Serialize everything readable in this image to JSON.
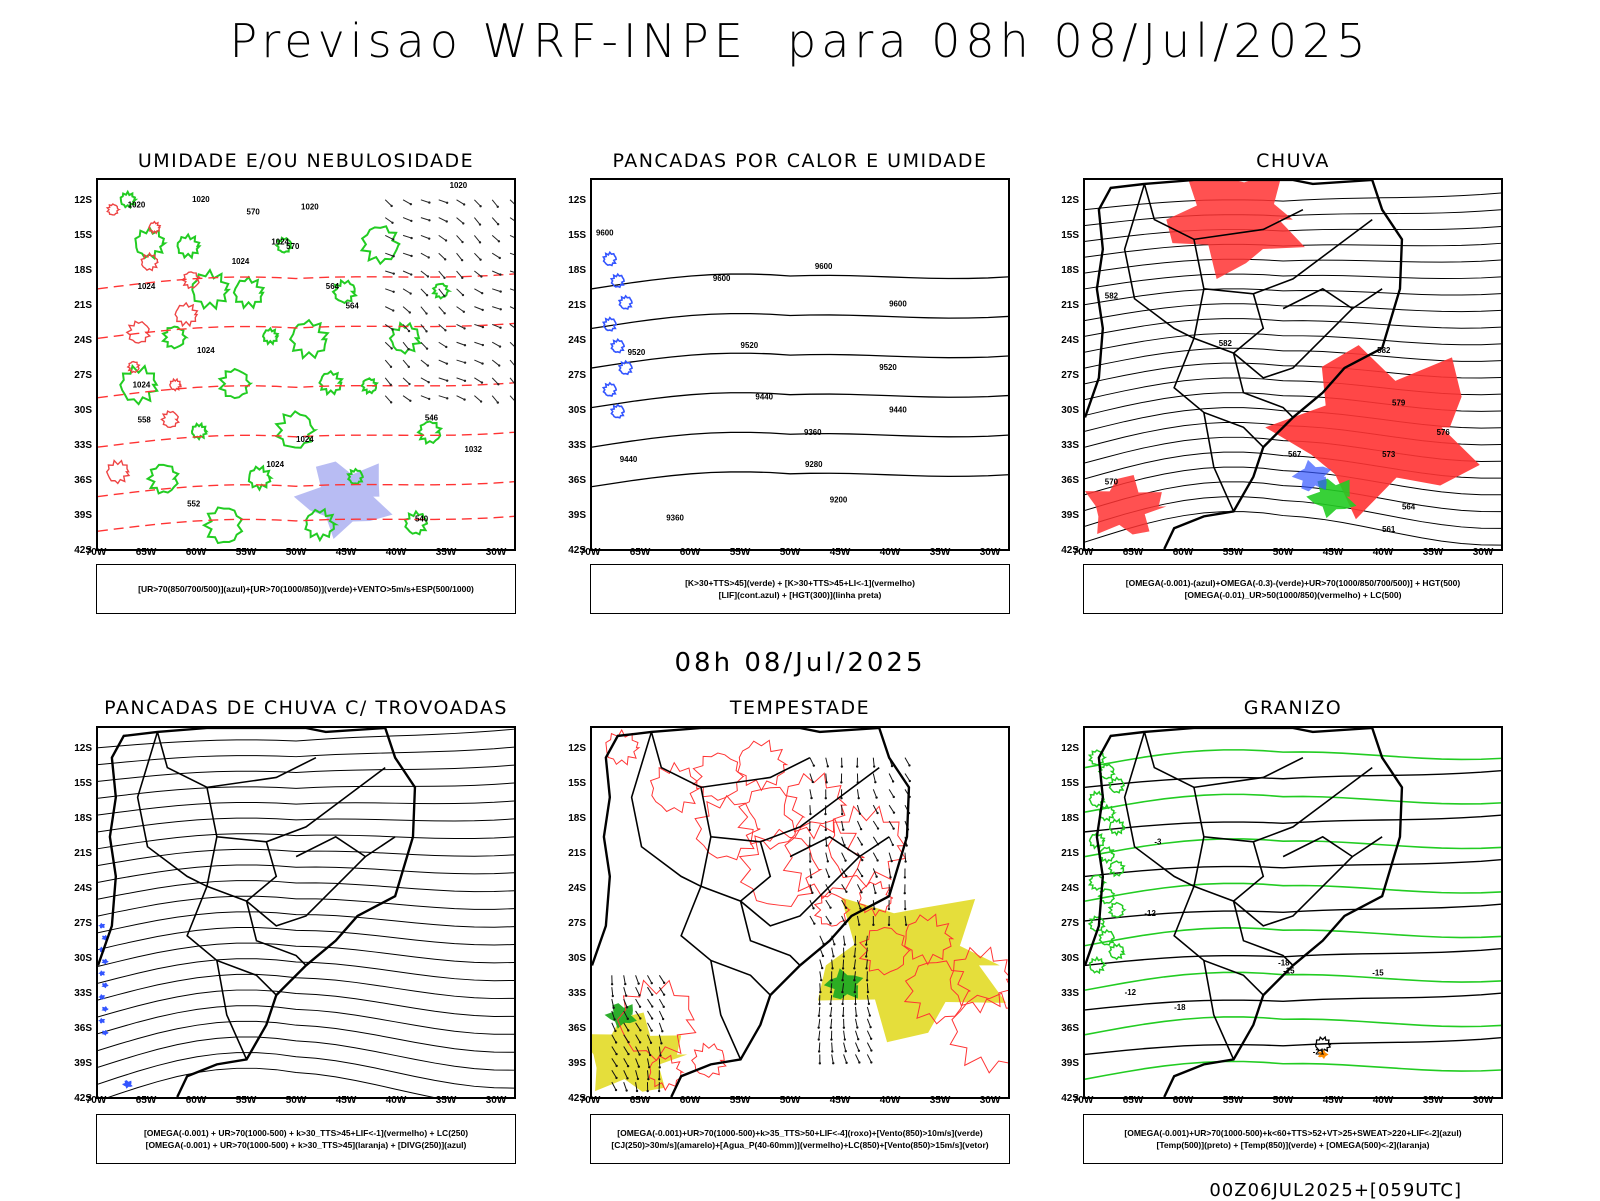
{
  "header": {
    "title": "Previsao WRF-INPE  para 08h 08/Jul/2025"
  },
  "middle_time": "08h 08/Jul/2025",
  "footer": "00Z06JUL2025+[059UTC]",
  "axes": {
    "lat_labels": [
      "12S",
      "15S",
      "18S",
      "21S",
      "24S",
      "27S",
      "30S",
      "33S",
      "36S",
      "39S",
      "42S"
    ],
    "lon_labels": [
      "70W",
      "65W",
      "60W",
      "55W",
      "50W",
      "45W",
      "40W",
      "35W",
      "30W"
    ]
  },
  "colors": {
    "green": "#22cc22",
    "red": "#ff3333",
    "blue": "#3355ff",
    "lavender": "#9aa0ee",
    "yellow": "#e4dc30",
    "black": "#000000",
    "orange": "#ff8c00"
  },
  "panels": [
    {
      "id": "umidade",
      "title": "UMIDADE E/OU NEBULOSIDADE",
      "legend": [
        "[UR>70(850/700/500)](azul)+[UR>70(1000/850)](verde)+VENTO>5m/s+ESP(500/1000)"
      ],
      "contour_labels": [
        "1020",
        "1020",
        "1020",
        "1020",
        "1024",
        "1024",
        "1024",
        "1024",
        "1024",
        "1024",
        "1024",
        "1032",
        "570",
        "570",
        "564",
        "564",
        "558",
        "552",
        "546",
        "540"
      ]
    },
    {
      "id": "pancadas_calor",
      "title": "PANCADAS POR CALOR E UMIDADE",
      "legend": [
        "[K>30+TTS>45](verde) + [K>30+TTS>45+LI<-1](vermelho)",
        "[LIF](cont.azul) + [HGT(300)](linha preta)"
      ],
      "contour_labels": [
        "9600",
        "9600",
        "9600",
        "9600",
        "9520",
        "9520",
        "9520",
        "9440",
        "9440",
        "9440",
        "9360",
        "9360",
        "9280",
        "9200"
      ]
    },
    {
      "id": "chuva",
      "title": "CHUVA",
      "legend": [
        "[OMEGA(-0.001)-(azul)+OMEGA(-0.3)-(verde)+UR>70(1000/850/700/500)] + HGT(500)",
        "[OMEGA(-0.01)_UR>50(1000/850)(vermelho) + LC(500)"
      ],
      "contour_labels": [
        "582",
        "582",
        "582",
        "579",
        "576",
        "573",
        "570",
        "567",
        "564",
        "561"
      ]
    },
    {
      "id": "pancadas_trovoadas",
      "title": "PANCADAS DE CHUVA C/ TROVOADAS",
      "legend": [
        "[OMEGA(-0.001) + UR>70(1000-500) + k>30_TTS>45+LIF<-1](vermelho) + LC(250)",
        "[OMEGA(-0.001) + UR>70(1000-500) + k>30_TTS>45](laranja) + [DIVG(250)](azul)"
      ],
      "contour_labels": []
    },
    {
      "id": "tempestade",
      "title": "TEMPESTADE",
      "legend": [
        "[OMEGA(-0.001)+UR>70(1000-500)+k>35_TTS>50+LIF<-4](roxo)+[Vento(850)>10m/s](verde)",
        "[CJ(250)>30m/s](amarelo)+[Agua_P(40-60mm)](vermelho)+LC(850)+[Vento(850)>15m/s](vetor)"
      ],
      "contour_labels": []
    },
    {
      "id": "granizo",
      "title": "GRANIZO",
      "legend": [
        "[OMEGA(-0.001)+UR>70(1000-500)+k<60+TTS>52+VT>25+SWEAT>220+LIF<-2](azul)",
        "[Temp(500)](preto) + [Temp(850)](verde) + [OMEGA(500)<-2](laranja)"
      ],
      "contour_labels": [
        "-3",
        "-12",
        "-12",
        "-15",
        "-18",
        "-18",
        "-21",
        "-15"
      ]
    }
  ]
}
